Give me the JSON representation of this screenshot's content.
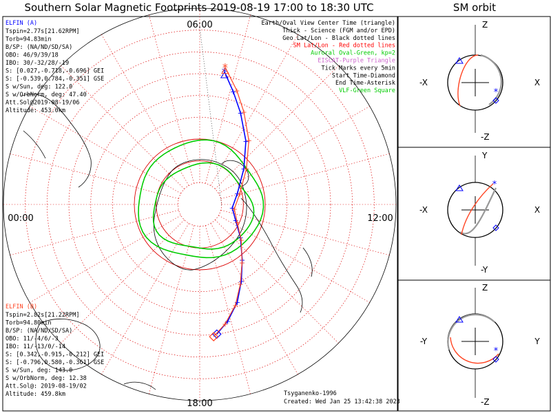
{
  "title": "Southern Solar Magnetic Footprints 2019-08-19 17:00 to 18:30 UTC",
  "orbit_title": "SM orbit",
  "clock_labels": {
    "top": "06:00",
    "left": "00:00",
    "right": "12:00",
    "bottom": "18:00"
  },
  "legend": [
    {
      "text": "Earth/Oval View Center Time (triangle)",
      "color": "#000000"
    },
    {
      "text": "Thick - Science (FGM and/or EPD)",
      "color": "#000000"
    },
    {
      "text": "Geo Lat/Lon - Black dotted lines",
      "color": "#000000"
    },
    {
      "text": "SM Lat/Lon - Red dotted lines",
      "color": "#ff0000"
    },
    {
      "text": "Auroral Oval-Green, kp=2",
      "color": "#00cc00"
    },
    {
      "text": "EISCAT-Purple Triangle",
      "color": "#cc66cc"
    },
    {
      "text": "Tick Marks every 5min",
      "color": "#000000"
    },
    {
      "text": "Start Time-Diamond",
      "color": "#000000"
    },
    {
      "text": "End Time-Asterisk",
      "color": "#000000"
    },
    {
      "text": "VLF-Green Square",
      "color": "#00cc00"
    }
  ],
  "elfin_a": {
    "name": "ELFIN (A)",
    "color": "#0000ff",
    "lines": [
      "Tspin=2.77s[21.62RPM]",
      "Torb=94.83min",
      "B/SP: (NA/ND/SD/SA)",
      "OBO: 46/9/39/18",
      "IBO: 30/-32/28/-19",
      "S: [0.027,-0.718,-0.696] GEI",
      "S: [-0.539,0.784,-0.351] GSE",
      "S w/Sun, deg: 122.0",
      "S w/OrbNorm, deg: 47.40",
      "Att.Sol@2019-08-19/06",
      "Altitude: 453.0km"
    ]
  },
  "elfin_b": {
    "name": "ELFIN (B)",
    "color": "#ff4422",
    "lines": [
      "Tspin=2.82s[21.22RPM]",
      "Torb=94.80min",
      "B/SP: (NA/ND/SD/SA)",
      "OBO: 11/-4/6/-3",
      "IBO: 11/-13/0/-14",
      "S: [0.342,-0.915,-0.212] GEI",
      "S: [-0.796,0.580,-0.361] GSE",
      "S w/Sun, deg: 143.0",
      "S w/OrbNorm, deg: 12.38",
      "Att.Sol@: 2019-08-19/02",
      "Altitude: 459.8km"
    ]
  },
  "credit": "Tsyganenko-1996",
  "created": "Created: Wed Jan 25 13:42:38 2023",
  "orbit_panels": [
    {
      "top": "Z",
      "bottom": "-Z",
      "left": "-X",
      "right": "X"
    },
    {
      "top": "Y",
      "bottom": "-Y",
      "left": "-X",
      "right": "X"
    },
    {
      "top": "Z",
      "bottom": "-Z",
      "left": "-Y",
      "right": "Y"
    }
  ],
  "chart_data": {
    "type": "scatter",
    "projection": "polar, southern hemisphere, SM magnetic local time",
    "grid": true,
    "sm_lat_circles_deg": [
      -80,
      -70,
      -60,
      -50,
      -40,
      -30,
      -20,
      -10
    ],
    "mlt_meridians_hours": [
      0,
      1,
      2,
      3,
      4,
      5,
      6,
      7,
      8,
      9,
      10,
      11,
      12,
      13,
      14,
      15,
      16,
      17,
      18,
      19,
      20,
      21,
      22,
      23
    ],
    "series": [
      {
        "name": "ELFIN (A)",
        "color": "#0000ff",
        "points": [
          [
            -30,
            6.5
          ],
          [
            -35,
            6.9
          ],
          [
            -42,
            7.4
          ],
          [
            -50,
            7.9
          ],
          [
            -58,
            8.5
          ],
          [
            -66,
            9.4
          ],
          [
            -72,
            10.4
          ],
          [
            -75,
            11.6
          ],
          [
            -72,
            13.1
          ],
          [
            -64,
            14.6
          ],
          [
            -54,
            15.6
          ],
          [
            -44,
            16.4
          ],
          [
            -36,
            16.9
          ],
          [
            -28,
            17.3
          ]
        ]
      },
      {
        "name": "ELFIN (B)",
        "color": "#ff4422",
        "points": [
          [
            -29,
            6.4
          ],
          [
            -34,
            6.8
          ],
          [
            -41,
            7.3
          ],
          [
            -49,
            7.8
          ],
          [
            -57,
            8.4
          ],
          [
            -65,
            9.3
          ],
          [
            -71,
            10.3
          ],
          [
            -74,
            11.5
          ],
          [
            -71,
            13.0
          ],
          [
            -63,
            14.5
          ],
          [
            -53,
            15.5
          ],
          [
            -43,
            16.3
          ],
          [
            -35,
            16.8
          ],
          [
            -26,
            17.3
          ]
        ]
      }
    ],
    "auroral_oval": {
      "kp": 2,
      "color": "#00cc00"
    }
  }
}
